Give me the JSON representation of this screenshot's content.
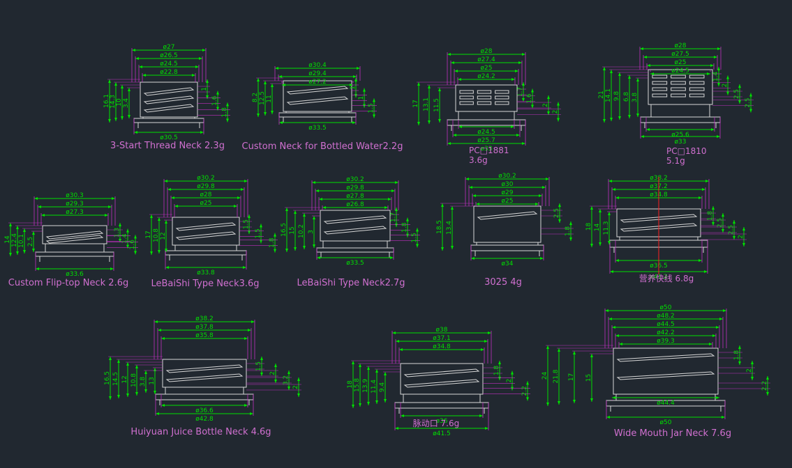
{
  "colors": {
    "background": "#212830",
    "dimension": "#00e000",
    "outline": "#d8d8d8",
    "leader": "#c030c0",
    "label": "#d070d0",
    "center": "#ff2020"
  },
  "drawings": [
    {
      "name": "3-Start Thread Neck 2.3g",
      "top": [
        "ø27",
        "ø26.5",
        "ø24.5",
        "ø22.8"
      ],
      "bottom": [
        "ø30.5"
      ],
      "left": [
        "16.1",
        "14.3",
        "10",
        "3.4"
      ],
      "right": [
        "1",
        "1.6",
        "1.8"
      ]
    },
    {
      "name": "Custom Neck for Bottled Water2.2g",
      "top": [
        "ø30.4",
        "ø29.4",
        "ø27.2"
      ],
      "bottom": [
        "ø33.5"
      ],
      "left": [
        "8.2",
        "12.5",
        "11"
      ],
      "right": [
        "1",
        "1",
        "1.5"
      ]
    },
    {
      "name": "PC□1881",
      "sub": "3.6g",
      "top": [
        "ø28",
        "ø27.4",
        "ø25",
        "ø24.2"
      ],
      "bottom": [
        "ø24.5",
        "ø25.7",
        "ø33"
      ],
      "left": [
        "17",
        "13.1",
        "11.5"
      ],
      "right": [
        "1.7",
        "1.6",
        "2",
        "2"
      ]
    },
    {
      "name": "PC□1810",
      "sub": "5.1g",
      "top": [
        "ø28",
        "ø27.5",
        "ø25",
        "ø24.5"
      ],
      "bottom": [
        "ø25.6",
        "ø33"
      ],
      "left": [
        "21",
        "14.1",
        "9.8",
        "6.8",
        "3.8"
      ],
      "right": [
        "1.4",
        "2",
        "2.5",
        "2.5"
      ]
    },
    {
      "name": "Custom Flip-top Neck 2.6g",
      "top": [
        "ø30.3",
        "ø29.3",
        "ø27.3"
      ],
      "bottom": [
        "ø33.6"
      ],
      "left": [
        "14",
        "12.4",
        "10.1",
        "2.5"
      ],
      "right": [
        "1.3",
        "1.4",
        "1.6"
      ]
    },
    {
      "name": "LeBaiShi Type Neck3.6g",
      "top": [
        "ø30.2",
        "ø29.8",
        "ø28",
        "ø25"
      ],
      "bottom": [
        "ø33.8"
      ],
      "left": [
        "17",
        "10.8",
        "12"
      ],
      "right": [
        "1.5",
        "1.5",
        "1.8"
      ]
    },
    {
      "name": "LeBaiShi Type Neck2.7g",
      "top": [
        "ø30.2",
        "ø29.8",
        "ø27.8",
        "ø26.8"
      ],
      "bottom": [
        "ø33.5"
      ],
      "left": [
        "16.5",
        "15",
        "10.2",
        "3"
      ],
      "right": [
        "1.7",
        "1.8",
        "1.5"
      ]
    },
    {
      "name": "3025 4g",
      "top": [
        "ø30.2",
        "ø30",
        "ø29",
        "ø25"
      ],
      "bottom": [
        "ø34"
      ],
      "left": [
        "18.5",
        "13.4"
      ],
      "right": [
        "2.5",
        "1.8"
      ]
    },
    {
      "name": "营养快线 6.8g",
      "top": [
        "ø38.2",
        "ø37.2",
        "ø34.8"
      ],
      "bottom": [
        "ø36.5",
        "ø41.2"
      ],
      "left": [
        "18",
        "14",
        "11.3"
      ],
      "right": [
        "1.8",
        "2.5",
        "2.5",
        "2"
      ]
    },
    {
      "name": "Huiyuan Juice Bottle Neck 4.6g",
      "top": [
        "ø38.2",
        "ø37.8",
        "ø35.8"
      ],
      "bottom": [
        "ø36.6",
        "ø42.8"
      ],
      "left": [
        "16.5",
        "14.5",
        "12",
        "10.8",
        "13",
        "3.8"
      ],
      "right": [
        "1.5",
        "2",
        "3.2",
        "2"
      ]
    },
    {
      "name": "脉动口 7.6g",
      "top": [
        "ø38",
        "ø37.1",
        "ø34.8"
      ],
      "bottom": [
        "ø36",
        "ø41.5"
      ],
      "left": [
        "18",
        "15.8",
        "13.9",
        "11.4",
        "9.4"
      ],
      "right": [
        "1.8",
        "2",
        "2.2"
      ]
    },
    {
      "name": "Wide Mouth Jar Neck 7.6g",
      "top": [
        "ø50",
        "ø48.2",
        "ø44.5",
        "ø42.2",
        "ø39.3"
      ],
      "bottom": [
        "ø44.4",
        "ø50"
      ],
      "left": [
        "24",
        "21.8",
        "17",
        "15"
      ],
      "right": [
        "1.8",
        "2",
        "2.2"
      ]
    }
  ]
}
